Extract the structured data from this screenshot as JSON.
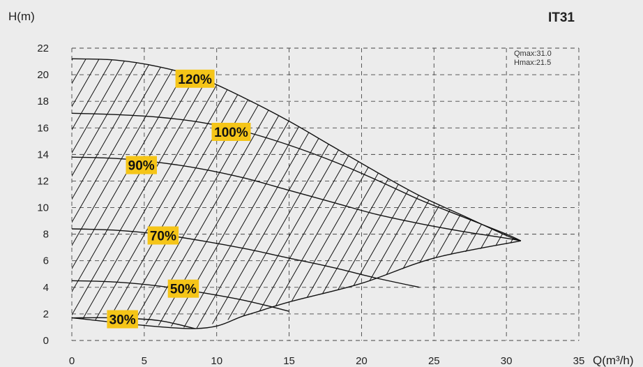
{
  "chart_data": {
    "type": "line",
    "title": "IT31",
    "ylabel": "H(m)",
    "xlabel": "Q(m³/h)",
    "xlim": [
      0,
      35
    ],
    "ylim": [
      0,
      22
    ],
    "x_ticks": [
      0,
      5,
      10,
      15,
      20,
      25,
      30,
      35
    ],
    "y_ticks": [
      0,
      2,
      4,
      6,
      8,
      10,
      12,
      14,
      16,
      18,
      20,
      22
    ],
    "grid": true,
    "notes": [
      "Qmax:31.0",
      "Hmax:21.5"
    ],
    "label_color": "#f5c518",
    "series": [
      {
        "name": "120%",
        "x": [
          0,
          3,
          6,
          9,
          12,
          15,
          18,
          21,
          24,
          27,
          30,
          31
        ],
        "y": [
          21.2,
          21.1,
          20.6,
          19.7,
          18.2,
          16.5,
          14.6,
          12.7,
          10.9,
          9.4,
          7.9,
          7.5
        ]
      },
      {
        "name": "100%",
        "x": [
          0,
          3,
          6,
          9,
          12,
          15,
          18,
          21,
          24,
          27,
          30,
          31
        ],
        "y": [
          17.1,
          17.0,
          16.8,
          16.4,
          15.7,
          14.7,
          13.5,
          12.1,
          10.6,
          9.3,
          8.0,
          7.5
        ]
      },
      {
        "name": "90%",
        "x": [
          0,
          3,
          6,
          9,
          12,
          15,
          18,
          21,
          24,
          27,
          30,
          31
        ],
        "y": [
          13.8,
          13.7,
          13.4,
          12.9,
          12.2,
          11.3,
          10.4,
          9.5,
          8.8,
          8.2,
          7.7,
          7.5
        ]
      },
      {
        "name": "70%",
        "x": [
          0,
          3,
          6,
          9,
          12,
          15,
          18,
          21,
          24
        ],
        "y": [
          8.4,
          8.3,
          8.0,
          7.5,
          6.9,
          6.2,
          5.5,
          4.7,
          4.0
        ]
      },
      {
        "name": "50%",
        "x": [
          0,
          3,
          6,
          9,
          12,
          15
        ],
        "y": [
          4.5,
          4.4,
          4.1,
          3.6,
          3.0,
          2.2
        ]
      },
      {
        "name": "30%",
        "x": [
          0,
          3,
          6,
          8.5
        ],
        "y": [
          1.7,
          1.7,
          1.5,
          0.9
        ]
      }
    ],
    "envelope": {
      "x": [
        0,
        8.5,
        12,
        15,
        20,
        25,
        31
      ],
      "y": [
        1.7,
        0.9,
        1.9,
        2.9,
        4.3,
        6.2,
        7.5
      ]
    },
    "labels": [
      {
        "text": "120%",
        "x": 8.5,
        "y": 19.7
      },
      {
        "text": "100%",
        "x": 11.0,
        "y": 15.7
      },
      {
        "text": "90%",
        "x": 4.8,
        "y": 13.2
      },
      {
        "text": "70%",
        "x": 6.3,
        "y": 7.9
      },
      {
        "text": "50%",
        "x": 7.7,
        "y": 3.9
      },
      {
        "text": "30%",
        "x": 3.5,
        "y": 1.6
      }
    ]
  }
}
